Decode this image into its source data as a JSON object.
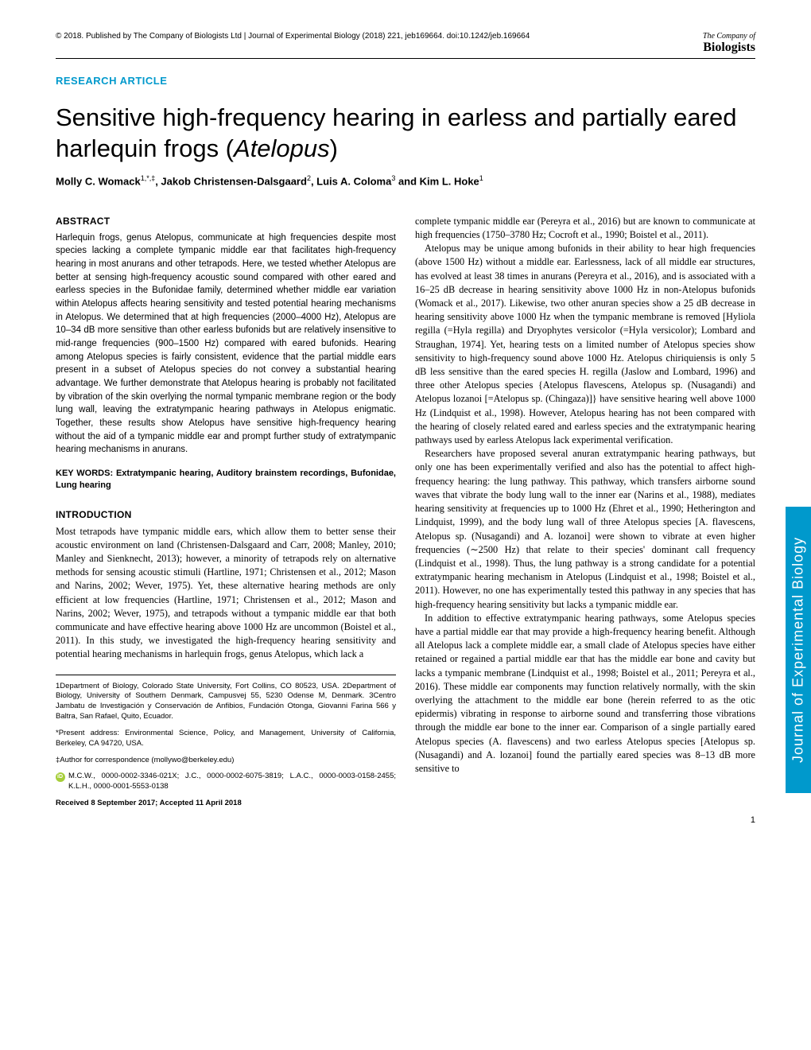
{
  "header": {
    "copyright": "© 2018. Published by The Company of Biologists Ltd | Journal of Experimental Biology (2018) 221, jeb169664. doi:10.1242/jeb.169664",
    "logo_top": "The Company of",
    "logo_main": "Biologists"
  },
  "article_type": "RESEARCH ARTICLE",
  "title_pre": "Sensitive high-frequency hearing in earless and partially eared harlequin frogs (",
  "title_italic": "Atelopus",
  "title_post": ")",
  "authors": "Molly C. Womack1,*,‡, Jakob Christensen-Dalsgaard2, Luis A. Coloma3 and Kim L. Hoke1",
  "abstract_head": "ABSTRACT",
  "abstract_text": "Harlequin frogs, genus Atelopus, communicate at high frequencies despite most species lacking a complete tympanic middle ear that facilitates high-frequency hearing in most anurans and other tetrapods. Here, we tested whether Atelopus are better at sensing high-frequency acoustic sound compared with other eared and earless species in the Bufonidae family, determined whether middle ear variation within Atelopus affects hearing sensitivity and tested potential hearing mechanisms in Atelopus. We determined that at high frequencies (2000–4000 Hz), Atelopus are 10–34 dB more sensitive than other earless bufonids but are relatively insensitive to mid-range frequencies (900–1500 Hz) compared with eared bufonids. Hearing among Atelopus species is fairly consistent, evidence that the partial middle ears present in a subset of Atelopus species do not convey a substantial hearing advantage. We further demonstrate that Atelopus hearing is probably not facilitated by vibration of the skin overlying the normal tympanic membrane region or the body lung wall, leaving the extratympanic hearing pathways in Atelopus enigmatic. Together, these results show Atelopus have sensitive high-frequency hearing without the aid of a tympanic middle ear and prompt further study of extratympanic hearing mechanisms in anurans.",
  "keywords": "KEY WORDS: Extratympanic hearing, Auditory brainstem recordings, Bufonidae, Lung hearing",
  "intro_head": "INTRODUCTION",
  "intro_p1": "Most tetrapods have tympanic middle ears, which allow them to better sense their acoustic environment on land (Christensen-Dalsgaard and Carr, 2008; Manley, 2010; Manley and Sienknecht, 2013); however, a minority of tetrapods rely on alternative methods for sensing acoustic stimuli (Hartline, 1971; Christensen et al., 2012; Mason and Narins, 2002; Wever, 1975). Yet, these alternative hearing methods are only efficient at low frequencies (Hartline, 1971; Christensen et al., 2012; Mason and Narins, 2002; Wever, 1975), and tetrapods without a tympanic middle ear that both communicate and have effective hearing above 1000 Hz are uncommon (Boistel et al., 2011). In this study, we investigated the high-frequency hearing sensitivity and potential hearing mechanisms in harlequin frogs, genus Atelopus, which lack a",
  "col2_p1": "complete tympanic middle ear (Pereyra et al., 2016) but are known to communicate at high frequencies (1750–3780 Hz; Cocroft et al., 1990; Boistel et al., 2011).",
  "col2_p2": "Atelopus may be unique among bufonids in their ability to hear high frequencies (above 1500 Hz) without a middle ear. Earlessness, lack of all middle ear structures, has evolved at least 38 times in anurans (Pereyra et al., 2016), and is associated with a 16–25 dB decrease in hearing sensitivity above 1000 Hz in non-Atelopus bufonids (Womack et al., 2017). Likewise, two other anuran species show a 25 dB decrease in hearing sensitivity above 1000 Hz when the tympanic membrane is removed [Hyliola regilla (=Hyla regilla) and Dryophytes versicolor (=Hyla versicolor); Lombard and Straughan, 1974]. Yet, hearing tests on a limited number of Atelopus species show sensitivity to high-frequency sound above 1000 Hz. Atelopus chiriquiensis is only 5 dB less sensitive than the eared species H. regilla (Jaslow and Lombard, 1996) and three other Atelopus species {Atelopus flavescens, Atelopus sp. (Nusagandi) and Atelopus lozanoi [=Atelopus sp. (Chingaza)]} have sensitive hearing well above 1000 Hz (Lindquist et al., 1998). However, Atelopus hearing has not been compared with the hearing of closely related eared and earless species and the extratympanic hearing pathways used by earless Atelopus lack experimental verification.",
  "col2_p3": "Researchers have proposed several anuran extratympanic hearing pathways, but only one has been experimentally verified and also has the potential to affect high-frequency hearing: the lung pathway. This pathway, which transfers airborne sound waves that vibrate the body lung wall to the inner ear (Narins et al., 1988), mediates hearing sensitivity at frequencies up to 1000 Hz (Ehret et al., 1990; Hetherington and Lindquist, 1999), and the body lung wall of three Atelopus species [A. flavescens, Atelopus sp. (Nusagandi) and A. lozanoi] were shown to vibrate at even higher frequencies (∼2500 Hz) that relate to their species' dominant call frequency (Lindquist et al., 1998). Thus, the lung pathway is a strong candidate for a potential extratympanic hearing mechanism in Atelopus (Lindquist et al., 1998; Boistel et al., 2011). However, no one has experimentally tested this pathway in any species that has high-frequency hearing sensitivity but lacks a tympanic middle ear.",
  "col2_p4": "In addition to effective extratympanic hearing pathways, some Atelopus species have a partial middle ear that may provide a high-frequency hearing benefit. Although all Atelopus lack a complete middle ear, a small clade of Atelopus species have either retained or regained a partial middle ear that has the middle ear bone and cavity but lacks a tympanic membrane (Lindquist et al., 1998; Boistel et al., 2011; Pereyra et al., 2016). These middle ear components may function relatively normally, with the skin overlying the attachment to the middle ear bone (herein referred to as the otic epidermis) vibrating in response to airborne sound and transferring those vibrations through the middle ear bone to the inner ear. Comparison of a single partially eared Atelopus species (A. flavescens) and two earless Atelopus species [Atelopus sp. (Nusagandi) and A. lozanoi] found the partially eared species was 8–13 dB more sensitive to",
  "affiliations": {
    "a1": "1Department of Biology, Colorado State University, Fort Collins, CO 80523, USA. 2Department of Biology, University of Southern Denmark, Campusvej 55, 5230 Odense M, Denmark. 3Centro Jambatu de Investigación y Conservación de Anfibios, Fundación Otonga, Giovanni Farina 566 y Baltra, San Rafael, Quito, Ecuador.",
    "present": "*Present address: Environmental Science, Policy, and Management, University of California, Berkeley, CA 94720, USA.",
    "corresponding": "‡Author for correspondence (mollywo@berkeley.edu)",
    "orcid": "M.C.W., 0000-0002-3346-021X; J.C., 0000-0002-6075-3819; L.A.C., 0000-0003-0158-2455; K.L.H., 0000-0001-5553-0138",
    "received": "Received 8 September 2017; Accepted 11 April 2018"
  },
  "sidebar_text": "Journal of Experimental Biology",
  "page_number": "1",
  "colors": {
    "accent": "#0099cc",
    "orcid": "#a6ce39",
    "text": "#000000",
    "background": "#ffffff"
  }
}
